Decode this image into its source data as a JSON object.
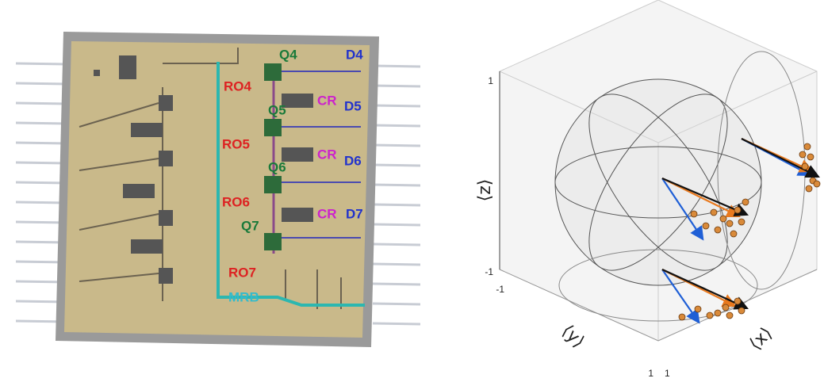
{
  "chip": {
    "qubits": [
      "Q4",
      "Q5",
      "Q6",
      "Q7"
    ],
    "drives": [
      "D4",
      "D5",
      "D6",
      "D7"
    ],
    "readouts": [
      "RO4",
      "RO5",
      "RO6",
      "RO7"
    ],
    "couplers": [
      "CR",
      "CR",
      "CR"
    ],
    "bus": "MRB"
  },
  "bloch": {
    "z_axis": {
      "label": "⟨z⟩",
      "ticks": [
        "1",
        "-1"
      ]
    },
    "y_axis": {
      "label": "⟨y⟩",
      "ticks": [
        "-1",
        "1"
      ]
    },
    "x_axis": {
      "label": "⟨x⟩",
      "ticks": [
        "1"
      ]
    }
  }
}
